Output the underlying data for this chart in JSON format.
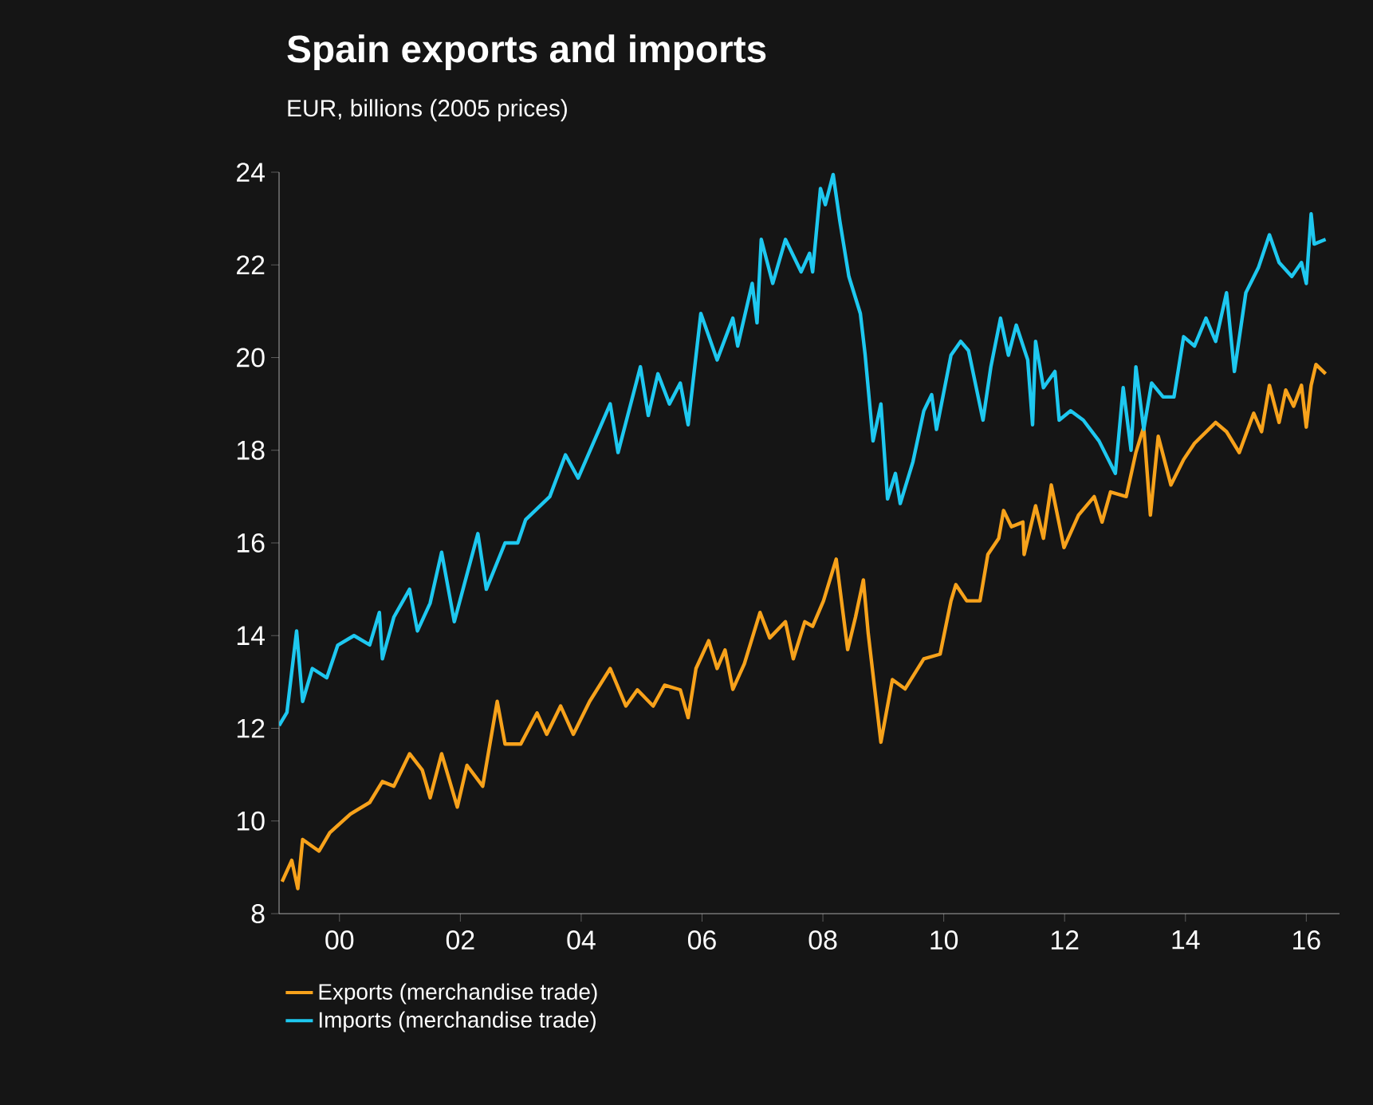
{
  "chart_data": {
    "type": "line",
    "title": "Spain exports and imports",
    "subtitle": "EUR, billions (2005 prices)",
    "xlim": [
      1999.0,
      2016.55
    ],
    "ylim": [
      8,
      24
    ],
    "xticks": [
      {
        "value": 2000,
        "label": "00"
      },
      {
        "value": 2002,
        "label": "02"
      },
      {
        "value": 2004,
        "label": "04"
      },
      {
        "value": 2006,
        "label": "06"
      },
      {
        "value": 2008,
        "label": "08"
      },
      {
        "value": 2010,
        "label": "10"
      },
      {
        "value": 2012,
        "label": "12"
      },
      {
        "value": 2014,
        "label": "14"
      },
      {
        "value": 2016,
        "label": "16"
      }
    ],
    "yticks": [
      8,
      10,
      12,
      14,
      16,
      18,
      20,
      22,
      24
    ],
    "grid": false,
    "legend": "bottom",
    "marker": "none",
    "line_style": "solid",
    "series": [
      {
        "name": "Exports (merchandise trade)",
        "color": "#f7a21b",
        "x": [
          1999.05,
          1999.21,
          1999.31,
          1999.39,
          1999.66,
          1999.84,
          2000.18,
          2000.5,
          2000.71,
          2000.9,
          2001.16,
          2001.37,
          2001.5,
          2001.69,
          2001.95,
          2002.11,
          2002.37,
          2002.61,
          2002.74,
          2003.0,
          2003.27,
          2003.43,
          2003.66,
          2003.87,
          2004.14,
          2004.48,
          2004.74,
          2004.93,
          2005.19,
          2005.38,
          2005.64,
          2005.77,
          2005.9,
          2006.11,
          2006.25,
          2006.38,
          2006.51,
          2006.7,
          2006.96,
          2007.12,
          2007.38,
          2007.51,
          2007.7,
          2007.83,
          2008.01,
          2008.22,
          2008.41,
          2008.54,
          2008.67,
          2008.75,
          2008.96,
          2009.15,
          2009.36,
          2009.67,
          2009.94,
          2010.12,
          2010.2,
          2010.38,
          2010.6,
          2010.73,
          2010.91,
          2010.99,
          2011.12,
          2011.31,
          2011.33,
          2011.52,
          2011.65,
          2011.78,
          2011.99,
          2012.23,
          2012.49,
          2012.62,
          2012.76,
          2013.02,
          2013.18,
          2013.31,
          2013.42,
          2013.55,
          2013.76,
          2013.97,
          2014.15,
          2014.5,
          2014.68,
          2014.89,
          2015.13,
          2015.26,
          2015.39,
          2015.55,
          2015.66,
          2015.79,
          2015.92,
          2016.0,
          2016.08,
          2016.16,
          2016.32
        ],
        "values": [
          8.69,
          9.15,
          8.54,
          9.6,
          9.35,
          9.75,
          10.15,
          10.4,
          10.85,
          10.75,
          11.45,
          11.1,
          10.5,
          11.45,
          10.3,
          11.2,
          10.75,
          12.58,
          11.66,
          11.66,
          12.33,
          11.87,
          12.48,
          11.87,
          12.58,
          13.29,
          12.48,
          12.83,
          12.48,
          12.93,
          12.83,
          12.23,
          13.29,
          13.89,
          13.29,
          13.69,
          12.84,
          13.39,
          14.5,
          13.95,
          14.3,
          13.5,
          14.3,
          14.2,
          14.75,
          15.65,
          13.7,
          14.4,
          15.2,
          14.05,
          11.7,
          13.05,
          12.85,
          13.5,
          13.6,
          14.75,
          15.1,
          14.75,
          14.75,
          15.75,
          16.1,
          16.7,
          16.35,
          16.45,
          15.75,
          16.8,
          16.1,
          17.25,
          15.9,
          16.6,
          17.0,
          16.45,
          17.1,
          17.0,
          17.95,
          18.5,
          16.6,
          18.3,
          17.25,
          17.8,
          18.15,
          18.6,
          18.4,
          17.95,
          18.8,
          18.4,
          19.4,
          18.6,
          19.3,
          18.95,
          19.4,
          18.5,
          19.4,
          19.85,
          19.65
        ]
      },
      {
        "name": "Imports (merchandise trade)",
        "color": "#1ec8f0",
        "x": [
          1999.0,
          1999.13,
          1999.29,
          1999.39,
          1999.55,
          1999.79,
          1999.97,
          2000.24,
          2000.5,
          2000.66,
          2000.71,
          2000.9,
          2001.16,
          2001.29,
          2001.5,
          2001.69,
          2001.9,
          2002.29,
          2002.43,
          2002.74,
          2002.95,
          2003.08,
          2003.48,
          2003.74,
          2003.95,
          2004.48,
          2004.61,
          2004.98,
          2005.11,
          2005.27,
          2005.46,
          2005.64,
          2005.77,
          2005.98,
          2006.25,
          2006.51,
          2006.59,
          2006.83,
          2006.91,
          2006.98,
          2007.17,
          2007.38,
          2007.64,
          2007.78,
          2007.83,
          2007.96,
          2008.04,
          2008.17,
          2008.28,
          2008.43,
          2008.62,
          2008.7,
          2008.83,
          2008.96,
          2009.07,
          2009.2,
          2009.28,
          2009.49,
          2009.67,
          2009.8,
          2009.88,
          2010.12,
          2010.28,
          2010.41,
          2010.65,
          2010.78,
          2010.94,
          2011.07,
          2011.2,
          2011.39,
          2011.47,
          2011.52,
          2011.65,
          2011.84,
          2011.91,
          2012.1,
          2012.31,
          2012.57,
          2012.84,
          2012.97,
          2013.1,
          2013.18,
          2013.31,
          2013.44,
          2013.63,
          2013.81,
          2013.97,
          2014.15,
          2014.34,
          2014.5,
          2014.68,
          2014.81,
          2015.0,
          2015.21,
          2015.39,
          2015.55,
          2015.76,
          2015.92,
          2016.0,
          2016.08,
          2016.13,
          2016.32
        ],
        "values": [
          12.06,
          12.34,
          14.1,
          12.58,
          13.29,
          13.09,
          13.79,
          14.0,
          13.8,
          14.5,
          13.5,
          14.4,
          15.0,
          14.1,
          14.7,
          15.8,
          14.3,
          16.2,
          15.0,
          16.0,
          16.0,
          16.5,
          17.0,
          17.9,
          17.4,
          19.0,
          17.95,
          19.8,
          18.75,
          19.65,
          19.0,
          19.45,
          18.55,
          20.95,
          19.95,
          20.85,
          20.25,
          21.6,
          20.75,
          22.55,
          21.6,
          22.55,
          21.85,
          22.25,
          21.85,
          23.65,
          23.3,
          23.95,
          22.95,
          21.75,
          20.95,
          20.05,
          18.2,
          19.0,
          16.95,
          17.5,
          16.85,
          17.75,
          18.85,
          19.2,
          18.45,
          20.05,
          20.35,
          20.15,
          18.65,
          19.8,
          20.85,
          20.05,
          20.7,
          19.95,
          18.55,
          20.35,
          19.35,
          19.7,
          18.65,
          18.85,
          18.65,
          18.2,
          17.5,
          19.35,
          18.0,
          19.8,
          18.45,
          19.45,
          19.15,
          19.15,
          20.45,
          20.25,
          20.85,
          20.35,
          21.4,
          19.7,
          21.4,
          21.95,
          22.65,
          22.05,
          21.75,
          22.05,
          21.6,
          23.1,
          22.45,
          22.55
        ]
      }
    ]
  }
}
